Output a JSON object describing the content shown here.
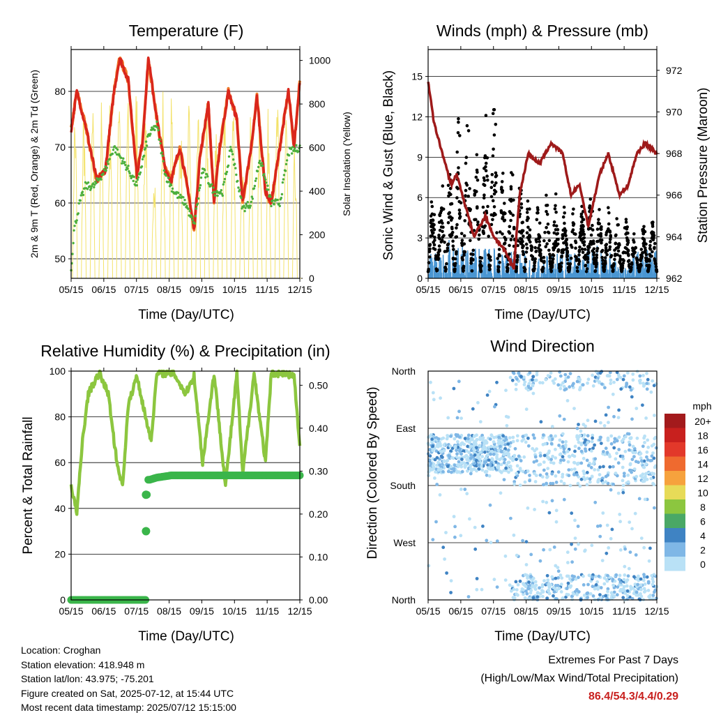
{
  "x_ticks": [
    "05/15",
    "06/15",
    "07/15",
    "08/15",
    "09/15",
    "10/15",
    "11/15",
    "12/15"
  ],
  "x_title": "Time (Day/UTC)",
  "colors": {
    "temp_2m": "#d9261c",
    "temp_9m": "#f07a2a",
    "dewpoint": "#4daf3c",
    "solar": "#f3e26a",
    "gust": "#000000",
    "wind": "#4a96d2",
    "pressure": "#9e1a1a",
    "rh": "#8cc63f",
    "precip": "#3ab54a"
  },
  "chart_data": [
    {
      "type": "line",
      "title": "Temperature (F)",
      "ylabel": "2m & 9m T (Red, Orange) & 2m Td (Green)",
      "y2label": "Solar Insolation (Yellow)",
      "ylim": [
        46.5,
        87.5
      ],
      "y_ticks": [
        50,
        60,
        70,
        80
      ],
      "y2lim": [
        0,
        1050
      ],
      "y2_ticks": [
        0,
        200,
        400,
        600,
        800,
        1000
      ],
      "series": [
        {
          "key": "temp_2m",
          "x": [
            0,
            0.2,
            0.5,
            0.9,
            1.2,
            1.5,
            1.7,
            2,
            2.3,
            2.5,
            2.7,
            3,
            3.3,
            3.5,
            3.8,
            4.1,
            4.3,
            4.5,
            4.8,
            5,
            5.2,
            5.5,
            5.8,
            6,
            6.3,
            6.5,
            6.8,
            7,
            7.3,
            7.6,
            7.8,
            8
          ],
          "y": [
            73,
            80,
            74,
            64,
            66,
            80,
            86,
            82,
            65,
            71,
            86,
            75,
            66,
            64,
            70,
            62,
            55,
            68,
            78,
            60,
            70,
            80,
            75,
            60,
            70,
            79,
            62,
            60,
            70,
            80,
            70,
            82
          ]
        },
        {
          "key": "dewpoint",
          "x": [
            0,
            0.1,
            0.3,
            0.5,
            0.8,
            1.2,
            1.5,
            2,
            2.3,
            2.7,
            3,
            3.3,
            3.6,
            4,
            4.3,
            4.6,
            5,
            5.3,
            5.6,
            6,
            6.3,
            6.6,
            7,
            7.3,
            7.6,
            8
          ],
          "y": [
            48,
            55,
            60,
            63,
            63,
            66,
            70,
            66,
            63,
            72,
            74,
            65,
            62,
            60,
            56,
            66,
            62,
            62,
            70,
            59,
            60,
            68,
            60,
            60,
            69,
            70
          ]
        }
      ],
      "solar_peak": [
        830,
        860,
        830,
        830,
        870,
        1020,
        870,
        930,
        870,
        620,
        900,
        880,
        810,
        850,
        870,
        810,
        820,
        950,
        790,
        700,
        780,
        830,
        820,
        870,
        830,
        640
      ]
    },
    {
      "type": "scatter",
      "title": "Winds (mph) & Pressure (mb)",
      "ylabel": "Sonic Wind & Gust (Blue, Black)",
      "y2label": "Station Pressure (Maroon)",
      "ylim": [
        0,
        17
      ],
      "y_ticks": [
        0,
        3,
        6,
        9,
        12,
        15
      ],
      "y2lim": [
        962,
        973
      ],
      "y2_ticks": [
        962,
        964,
        966,
        968,
        970,
        972
      ],
      "pressure": {
        "x": [
          0,
          0.2,
          0.5,
          0.8,
          1,
          1.3,
          1.6,
          2,
          2.3,
          2.6,
          3,
          3.2,
          3.5,
          3.9,
          4.3,
          4.7,
          5,
          5.3,
          5.6,
          6,
          6.3,
          6.7,
          7,
          7.3,
          7.6,
          8
        ],
        "y": [
          971.5,
          969.5,
          968,
          966.5,
          967,
          965.5,
          964,
          965,
          964,
          963.5,
          962.5,
          966,
          968,
          967.5,
          968.5,
          968,
          966,
          966.5,
          964.5,
          967,
          968,
          966,
          966.5,
          968,
          968.5,
          968
        ]
      },
      "gust_envelope": [
        6,
        9,
        12,
        9,
        14,
        8,
        7,
        5,
        6,
        5,
        5,
        6,
        5,
        4,
        3,
        4
      ],
      "wind_envelope": [
        2,
        3,
        2.5,
        3,
        2.5,
        2,
        2,
        1.5,
        2,
        2.5,
        2,
        2.5,
        2,
        1.5,
        2,
        2.5
      ]
    },
    {
      "type": "line",
      "title": "Relative Humidity (%) & Precipitation (in)",
      "ylabel": "Percent & Total Rainfall",
      "ylim": [
        0,
        100
      ],
      "y_ticks": [
        0,
        20,
        40,
        60,
        80,
        100
      ],
      "y2lim": [
        0,
        0.533
      ],
      "y2_ticks": [
        "0.00",
        "0.10",
        "0.20",
        "0.30",
        "0.40",
        "0.50"
      ],
      "rh": {
        "x": [
          0,
          0.2,
          0.4,
          0.6,
          0.8,
          1,
          1.3,
          1.6,
          1.8,
          2,
          2.3,
          2.6,
          2.8,
          3,
          3.2,
          3.6,
          4,
          4.3,
          4.6,
          5,
          5.4,
          5.8,
          6,
          6.4,
          6.8,
          7,
          7.4,
          7.8,
          8
        ],
        "y": [
          50,
          38,
          70,
          90,
          95,
          99,
          90,
          60,
          50,
          85,
          98,
          80,
          70,
          99,
          99,
          99,
          90,
          98,
          60,
          99,
          50,
          99,
          55,
          99,
          60,
          99,
          99,
          98,
          66
        ]
      },
      "precip": {
        "x": [
          0,
          1,
          2,
          2.6,
          2.62,
          2.65,
          2.7,
          2.75,
          3,
          3.5,
          4,
          5,
          6,
          7,
          8
        ],
        "y": [
          0,
          0,
          0,
          0,
          0.16,
          0.245,
          0.28,
          0.28,
          0.285,
          0.29,
          0.29,
          0.29,
          0.29,
          0.29,
          0.29
        ]
      }
    },
    {
      "type": "scatter",
      "title": "Wind Direction",
      "ylabel": "Direction (Colored By Speed)",
      "y_ticks": [
        "North",
        "West",
        "South",
        "East",
        "North"
      ],
      "ylim": [
        0,
        360
      ],
      "legend_title": "mph",
      "legend_labels": [
        "20+",
        "18",
        "16",
        "14",
        "12",
        "10",
        "8",
        "6",
        "4",
        "2",
        "0"
      ],
      "legend_colors": [
        "#a31a1c",
        "#c8201e",
        "#e2382a",
        "#ef6a2f",
        "#f6a23d",
        "#e7db58",
        "#8cc63f",
        "#4aa866",
        "#3f83c3",
        "#7fb7e6",
        "#b9e1f6"
      ],
      "legend_placement": "right"
    }
  ],
  "info": {
    "location": "Location: Croghan",
    "elevation": "Station elevation: 418.948 m",
    "latlon": "Station lat/lon: 43.975; -75.201",
    "created": "Figure created on Sat, 2025-07-12, at 15:44 UTC",
    "recent": "Most recent data timestamp: 2025/07/12 15:15:00"
  },
  "extremes": {
    "heading": "Extremes For Past 7 Days",
    "subheading": "(High/Low/Max Wind/Total Precipitation)",
    "values": "86.4/54.3/4.4/0.29"
  }
}
